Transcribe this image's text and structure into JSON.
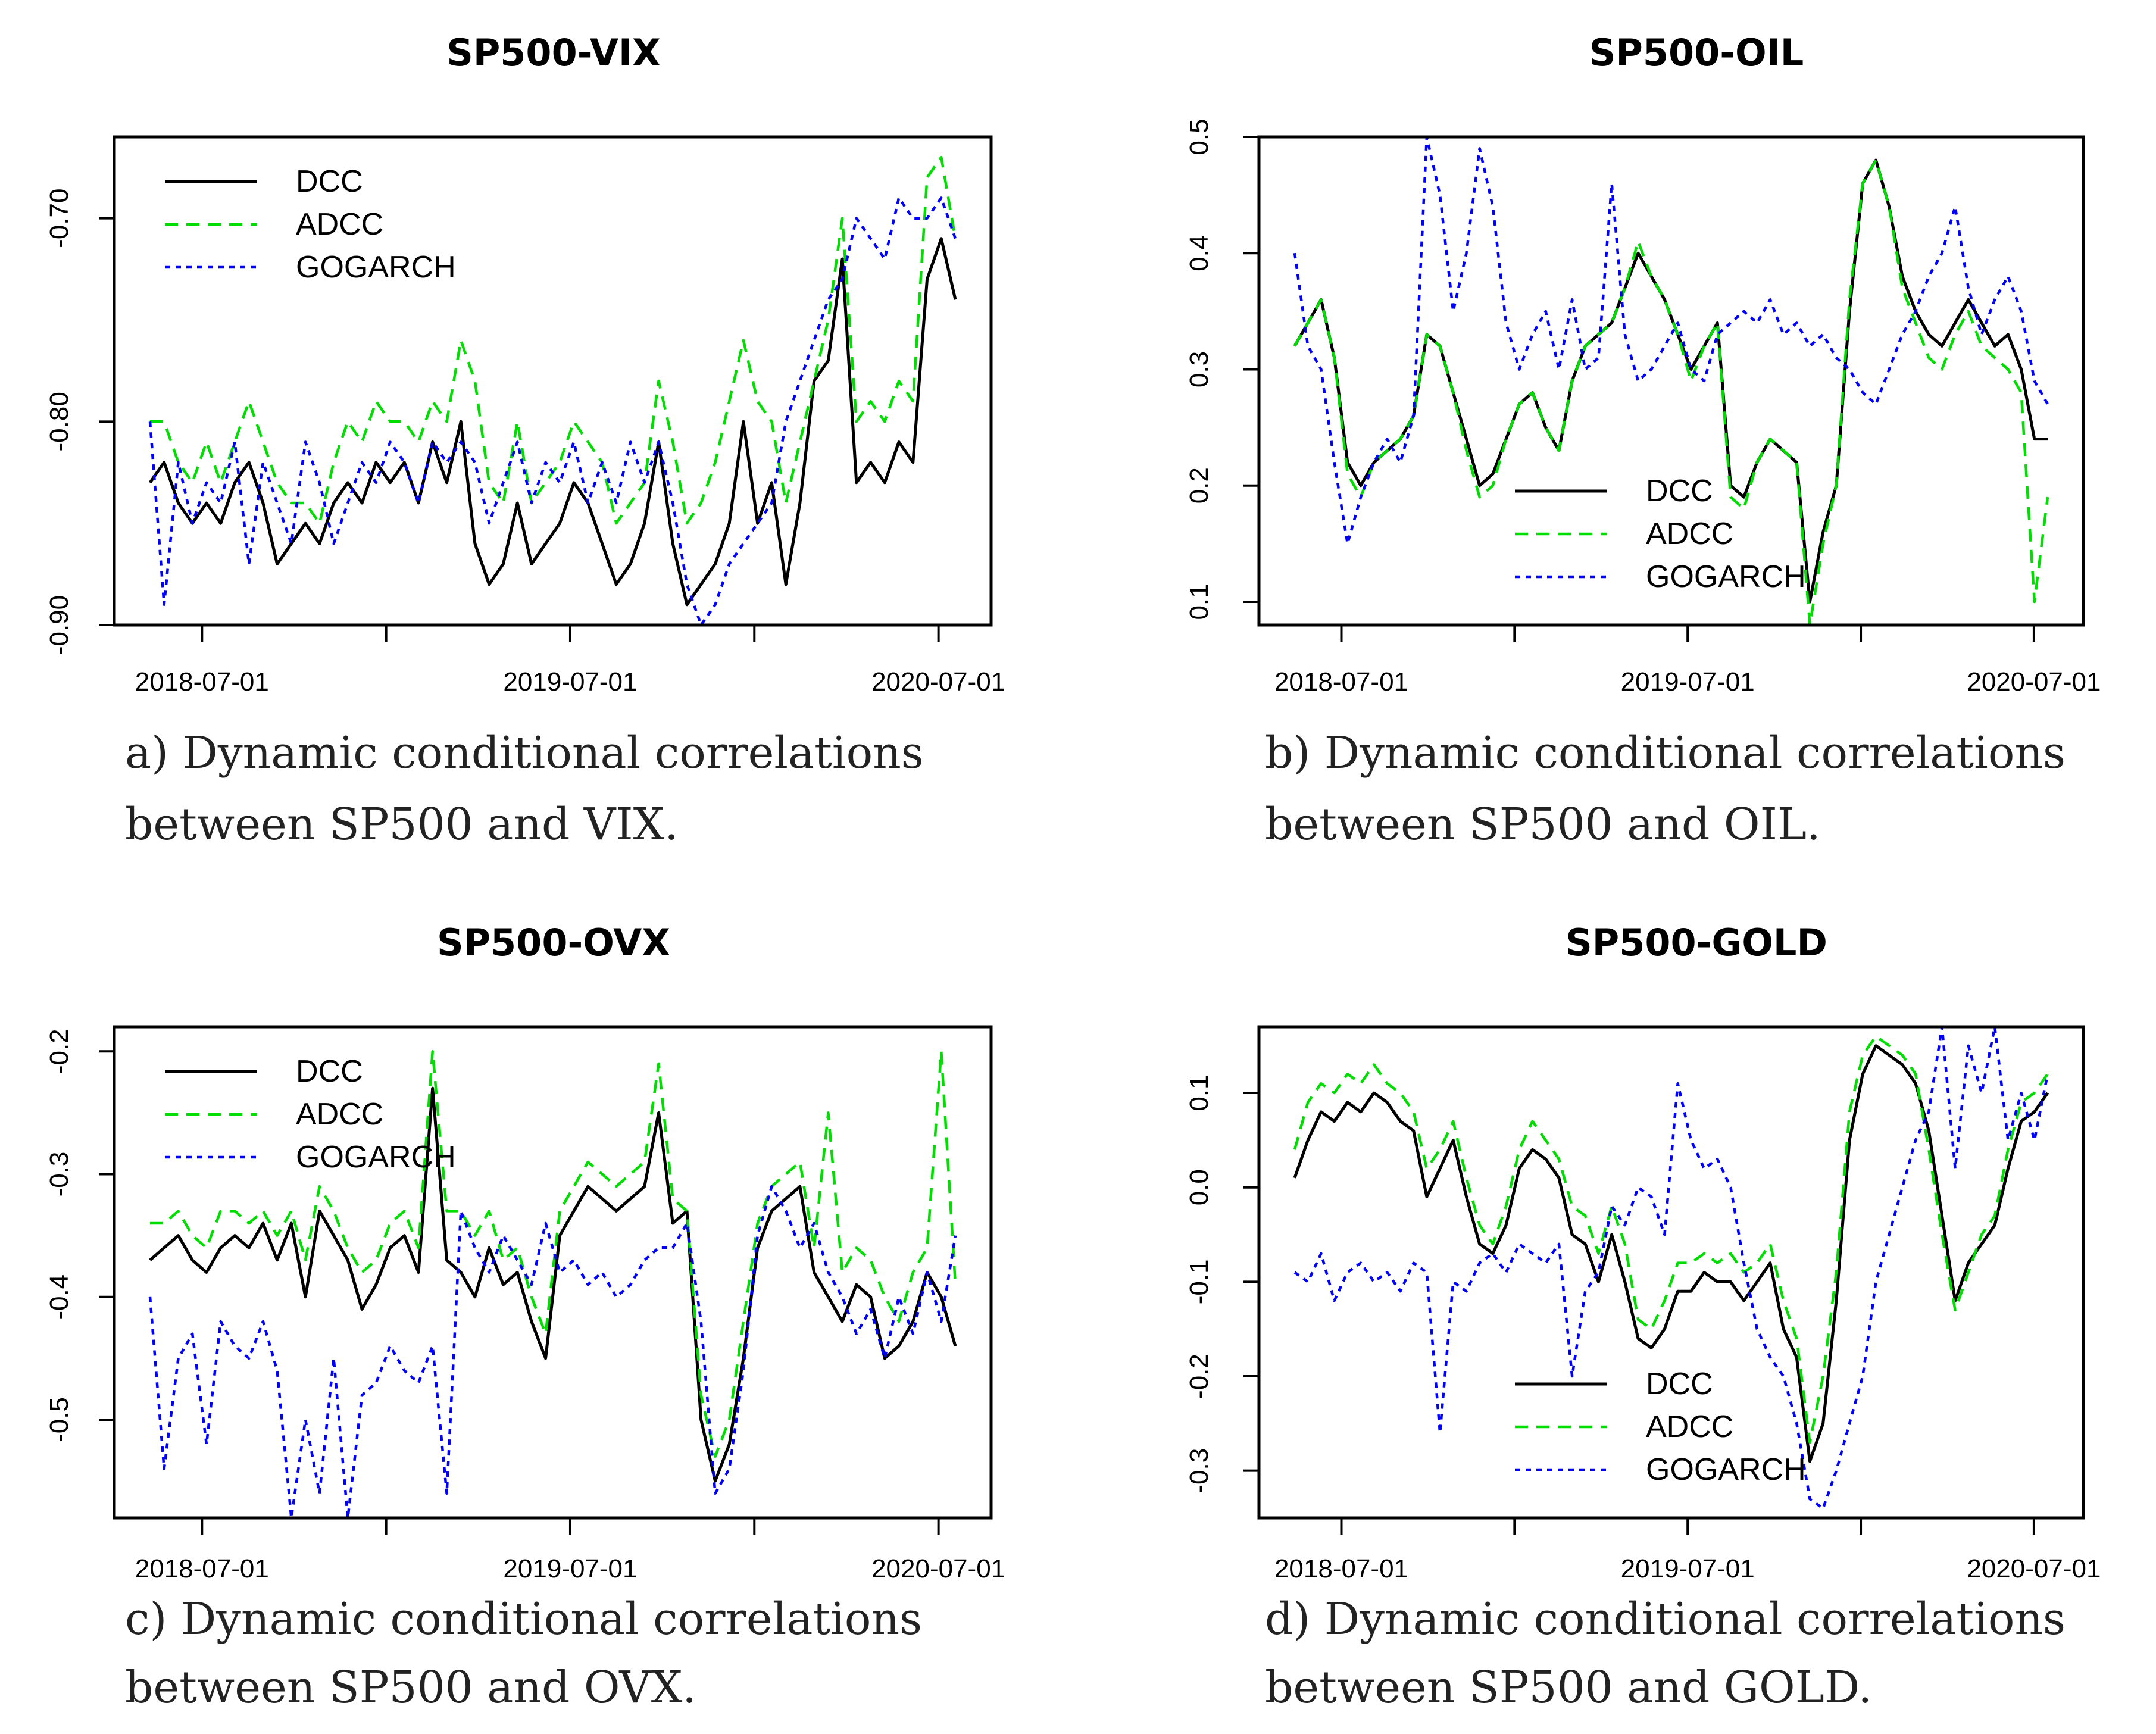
{
  "chart_data": [
    {
      "type": "line",
      "title": "SP500-VIX",
      "caption_lines": [
        "a) Dynamic conditional correlations",
        "between SP500 and VIX."
      ],
      "x_ticks": [
        "2018-07-01",
        "2019-07-01",
        "2020-07-01"
      ],
      "y_ticks": [
        "-0.70",
        "-0.80",
        "-0.90"
      ],
      "ylim": [
        -0.9,
        -0.66
      ],
      "legend": [
        "DCC",
        "ADCC",
        "GOGARCH"
      ],
      "legend_position": "top-left",
      "colors": {
        "DCC": "#000000",
        "ADCC": "#00dd00",
        "GOGARCH": "#0000ff"
      },
      "series": [
        {
          "name": "DCC",
          "values": [
            -0.83,
            -0.82,
            -0.84,
            -0.85,
            -0.84,
            -0.85,
            -0.83,
            -0.82,
            -0.84,
            -0.87,
            -0.86,
            -0.85,
            -0.86,
            -0.84,
            -0.83,
            -0.84,
            -0.82,
            -0.83,
            -0.82,
            -0.84,
            -0.81,
            -0.83,
            -0.8,
            -0.86,
            -0.88,
            -0.87,
            -0.84,
            -0.87,
            -0.86,
            -0.85,
            -0.83,
            -0.84,
            -0.86,
            -0.88,
            -0.87,
            -0.85,
            -0.81,
            -0.86,
            -0.89,
            -0.88,
            -0.87,
            -0.85,
            -0.8,
            -0.85,
            -0.83,
            -0.88,
            -0.84,
            -0.78,
            -0.77,
            -0.72,
            -0.83,
            -0.82,
            -0.83,
            -0.81,
            -0.82,
            -0.73,
            -0.71,
            -0.74
          ]
        },
        {
          "name": "ADCC",
          "values": [
            -0.8,
            -0.8,
            -0.82,
            -0.83,
            -0.81,
            -0.83,
            -0.81,
            -0.79,
            -0.81,
            -0.83,
            -0.84,
            -0.84,
            -0.85,
            -0.82,
            -0.8,
            -0.81,
            -0.79,
            -0.8,
            -0.8,
            -0.81,
            -0.79,
            -0.8,
            -0.76,
            -0.78,
            -0.83,
            -0.84,
            -0.8,
            -0.84,
            -0.83,
            -0.82,
            -0.8,
            -0.81,
            -0.82,
            -0.85,
            -0.84,
            -0.83,
            -0.78,
            -0.81,
            -0.85,
            -0.84,
            -0.82,
            -0.79,
            -0.76,
            -0.79,
            -0.8,
            -0.84,
            -0.81,
            -0.78,
            -0.75,
            -0.7,
            -0.8,
            -0.79,
            -0.8,
            -0.78,
            -0.79,
            -0.68,
            -0.67,
            -0.71
          ]
        },
        {
          "name": "GOGARCH",
          "values": [
            -0.8,
            -0.89,
            -0.82,
            -0.85,
            -0.83,
            -0.84,
            -0.81,
            -0.87,
            -0.82,
            -0.84,
            -0.86,
            -0.81,
            -0.83,
            -0.86,
            -0.84,
            -0.82,
            -0.83,
            -0.81,
            -0.82,
            -0.84,
            -0.81,
            -0.82,
            -0.81,
            -0.82,
            -0.85,
            -0.83,
            -0.81,
            -0.84,
            -0.82,
            -0.83,
            -0.81,
            -0.84,
            -0.82,
            -0.84,
            -0.81,
            -0.83,
            -0.81,
            -0.84,
            -0.88,
            -0.9,
            -0.89,
            -0.87,
            -0.86,
            -0.85,
            -0.84,
            -0.8,
            -0.78,
            -0.76,
            -0.74,
            -0.73,
            -0.7,
            -0.71,
            -0.72,
            -0.69,
            -0.7,
            -0.7,
            -0.69,
            -0.71
          ]
        }
      ]
    },
    {
      "type": "line",
      "title": "SP500-OIL",
      "caption_lines": [
        "b) Dynamic conditional correlations",
        "between SP500 and OIL."
      ],
      "x_ticks": [
        "2018-07-01",
        "2019-07-01",
        "2020-07-01"
      ],
      "y_ticks": [
        "0.5",
        "0.4",
        "0.3",
        "0.2",
        "0.1"
      ],
      "ylim": [
        0.08,
        0.5
      ],
      "legend": [
        "DCC",
        "ADCC",
        "GOGARCH"
      ],
      "legend_position": "bottom-center",
      "colors": {
        "DCC": "#000000",
        "ADCC": "#00dd00",
        "GOGARCH": "#0000ff"
      },
      "series": [
        {
          "name": "DCC",
          "values": [
            0.32,
            0.34,
            0.36,
            0.31,
            0.22,
            0.2,
            0.22,
            0.23,
            0.24,
            0.26,
            0.33,
            0.32,
            0.28,
            0.24,
            0.2,
            0.21,
            0.24,
            0.27,
            0.28,
            0.25,
            0.23,
            0.29,
            0.32,
            0.33,
            0.34,
            0.37,
            0.4,
            0.38,
            0.36,
            0.33,
            0.3,
            0.32,
            0.34,
            0.2,
            0.19,
            0.22,
            0.24,
            0.23,
            0.22,
            0.1,
            0.16,
            0.2,
            0.35,
            0.46,
            0.48,
            0.44,
            0.38,
            0.35,
            0.33,
            0.32,
            0.34,
            0.36,
            0.34,
            0.32,
            0.33,
            0.3,
            0.24,
            0.24
          ]
        },
        {
          "name": "ADCC",
          "values": [
            0.32,
            0.34,
            0.36,
            0.31,
            0.21,
            0.19,
            0.22,
            0.23,
            0.24,
            0.26,
            0.33,
            0.32,
            0.28,
            0.23,
            0.19,
            0.2,
            0.24,
            0.27,
            0.28,
            0.25,
            0.23,
            0.29,
            0.32,
            0.33,
            0.34,
            0.37,
            0.41,
            0.38,
            0.36,
            0.33,
            0.29,
            0.32,
            0.34,
            0.19,
            0.18,
            0.22,
            0.24,
            0.23,
            0.22,
            0.08,
            0.15,
            0.2,
            0.36,
            0.46,
            0.48,
            0.44,
            0.37,
            0.34,
            0.31,
            0.3,
            0.33,
            0.35,
            0.32,
            0.31,
            0.3,
            0.28,
            0.1,
            0.19
          ]
        },
        {
          "name": "GOGARCH",
          "values": [
            0.4,
            0.32,
            0.3,
            0.22,
            0.15,
            0.19,
            0.22,
            0.24,
            0.22,
            0.26,
            0.5,
            0.45,
            0.35,
            0.4,
            0.49,
            0.44,
            0.34,
            0.3,
            0.33,
            0.35,
            0.3,
            0.36,
            0.3,
            0.31,
            0.46,
            0.33,
            0.29,
            0.3,
            0.32,
            0.34,
            0.3,
            0.29,
            0.33,
            0.34,
            0.35,
            0.34,
            0.36,
            0.33,
            0.34,
            0.32,
            0.33,
            0.31,
            0.3,
            0.28,
            0.27,
            0.3,
            0.33,
            0.35,
            0.38,
            0.4,
            0.44,
            0.37,
            0.33,
            0.36,
            0.38,
            0.35,
            0.29,
            0.27
          ]
        }
      ]
    },
    {
      "type": "line",
      "title": "SP500-OVX",
      "caption_lines": [
        "c) Dynamic conditional correlations",
        "between SP500 and OVX."
      ],
      "x_ticks": [
        "2018-07-01",
        "2019-07-01",
        "2020-07-01"
      ],
      "y_ticks": [
        "-0.2",
        "-0.3",
        "-0.4",
        "-0.5"
      ],
      "ylim": [
        -0.58,
        -0.18
      ],
      "legend": [
        "DCC",
        "ADCC",
        "GOGARCH"
      ],
      "legend_position": "top-left",
      "colors": {
        "DCC": "#000000",
        "ADCC": "#00dd00",
        "GOGARCH": "#0000ff"
      },
      "series": [
        {
          "name": "DCC",
          "values": [
            -0.37,
            -0.36,
            -0.35,
            -0.37,
            -0.38,
            -0.36,
            -0.35,
            -0.36,
            -0.34,
            -0.37,
            -0.34,
            -0.4,
            -0.33,
            -0.35,
            -0.37,
            -0.41,
            -0.39,
            -0.36,
            -0.35,
            -0.38,
            -0.23,
            -0.37,
            -0.38,
            -0.4,
            -0.36,
            -0.39,
            -0.38,
            -0.42,
            -0.45,
            -0.35,
            -0.33,
            -0.31,
            -0.32,
            -0.33,
            -0.32,
            -0.31,
            -0.25,
            -0.34,
            -0.33,
            -0.5,
            -0.55,
            -0.52,
            -0.45,
            -0.36,
            -0.33,
            -0.32,
            -0.31,
            -0.38,
            -0.4,
            -0.42,
            -0.39,
            -0.4,
            -0.45,
            -0.44,
            -0.42,
            -0.38,
            -0.4,
            -0.44
          ]
        },
        {
          "name": "ADCC",
          "values": [
            -0.34,
            -0.34,
            -0.33,
            -0.35,
            -0.36,
            -0.33,
            -0.33,
            -0.34,
            -0.33,
            -0.35,
            -0.33,
            -0.37,
            -0.31,
            -0.33,
            -0.36,
            -0.38,
            -0.37,
            -0.34,
            -0.33,
            -0.36,
            -0.2,
            -0.33,
            -0.33,
            -0.35,
            -0.33,
            -0.37,
            -0.36,
            -0.4,
            -0.43,
            -0.33,
            -0.31,
            -0.29,
            -0.3,
            -0.31,
            -0.3,
            -0.29,
            -0.21,
            -0.32,
            -0.33,
            -0.48,
            -0.53,
            -0.5,
            -0.42,
            -0.34,
            -0.31,
            -0.3,
            -0.29,
            -0.36,
            -0.25,
            -0.38,
            -0.36,
            -0.37,
            -0.4,
            -0.42,
            -0.38,
            -0.36,
            -0.2,
            -0.39
          ]
        },
        {
          "name": "GOGARCH",
          "values": [
            -0.4,
            -0.54,
            -0.45,
            -0.43,
            -0.52,
            -0.42,
            -0.44,
            -0.45,
            -0.42,
            -0.46,
            -0.58,
            -0.5,
            -0.56,
            -0.45,
            -0.58,
            -0.48,
            -0.47,
            -0.44,
            -0.46,
            -0.47,
            -0.44,
            -0.56,
            -0.33,
            -0.36,
            -0.38,
            -0.35,
            -0.37,
            -0.39,
            -0.34,
            -0.38,
            -0.37,
            -0.39,
            -0.38,
            -0.4,
            -0.39,
            -0.37,
            -0.36,
            -0.36,
            -0.34,
            -0.42,
            -0.56,
            -0.54,
            -0.46,
            -0.35,
            -0.31,
            -0.33,
            -0.36,
            -0.34,
            -0.38,
            -0.4,
            -0.43,
            -0.41,
            -0.45,
            -0.4,
            -0.43,
            -0.38,
            -0.42,
            -0.35
          ]
        }
      ]
    },
    {
      "type": "line",
      "title": "SP500-GOLD",
      "caption_lines": [
        "d) Dynamic conditional correlations",
        "between SP500 and GOLD."
      ],
      "x_ticks": [
        "2018-07-01",
        "2019-07-01",
        "2020-07-01"
      ],
      "y_ticks": [
        "0.1",
        "0.0",
        "-0.1",
        "-0.2",
        "-0.3"
      ],
      "ylim": [
        -0.35,
        0.17
      ],
      "legend": [
        "DCC",
        "ADCC",
        "GOGARCH"
      ],
      "legend_position": "bottom-center",
      "colors": {
        "DCC": "#000000",
        "ADCC": "#00dd00",
        "GOGARCH": "#0000ff"
      },
      "series": [
        {
          "name": "DCC",
          "values": [
            0.01,
            0.05,
            0.08,
            0.07,
            0.09,
            0.08,
            0.1,
            0.09,
            0.07,
            0.06,
            -0.01,
            0.02,
            0.05,
            -0.01,
            -0.06,
            -0.07,
            -0.04,
            0.02,
            0.04,
            0.03,
            0.01,
            -0.05,
            -0.06,
            -0.1,
            -0.05,
            -0.1,
            -0.16,
            -0.17,
            -0.15,
            -0.11,
            -0.11,
            -0.09,
            -0.1,
            -0.1,
            -0.12,
            -0.1,
            -0.08,
            -0.15,
            -0.18,
            -0.29,
            -0.25,
            -0.12,
            0.05,
            0.12,
            0.15,
            0.14,
            0.13,
            0.11,
            0.06,
            -0.03,
            -0.12,
            -0.08,
            -0.06,
            -0.04,
            0.02,
            0.07,
            0.08,
            0.1
          ]
        },
        {
          "name": "ADCC",
          "values": [
            0.04,
            0.09,
            0.11,
            0.1,
            0.12,
            0.11,
            0.13,
            0.11,
            0.1,
            0.08,
            0.02,
            0.04,
            0.07,
            0.01,
            -0.04,
            -0.06,
            -0.02,
            0.04,
            0.07,
            0.05,
            0.03,
            -0.02,
            -0.03,
            -0.07,
            -0.02,
            -0.06,
            -0.14,
            -0.15,
            -0.12,
            -0.08,
            -0.08,
            -0.07,
            -0.08,
            -0.07,
            -0.09,
            -0.08,
            -0.06,
            -0.12,
            -0.16,
            -0.27,
            -0.2,
            -0.09,
            0.08,
            0.14,
            0.16,
            0.15,
            0.14,
            0.12,
            0.04,
            -0.05,
            -0.13,
            -0.09,
            -0.05,
            -0.03,
            0.04,
            0.09,
            0.1,
            0.12
          ]
        },
        {
          "name": "GOGARCH",
          "values": [
            -0.09,
            -0.1,
            -0.07,
            -0.12,
            -0.09,
            -0.08,
            -0.1,
            -0.09,
            -0.11,
            -0.08,
            -0.09,
            -0.26,
            -0.1,
            -0.11,
            -0.08,
            -0.07,
            -0.09,
            -0.06,
            -0.07,
            -0.08,
            -0.06,
            -0.2,
            -0.11,
            -0.09,
            -0.02,
            -0.04,
            0.0,
            -0.01,
            -0.05,
            0.11,
            0.05,
            0.02,
            0.03,
            0.0,
            -0.08,
            -0.15,
            -0.18,
            -0.2,
            -0.25,
            -0.33,
            -0.34,
            -0.3,
            -0.25,
            -0.2,
            -0.1,
            -0.05,
            0.0,
            0.05,
            0.08,
            0.17,
            0.02,
            0.15,
            0.1,
            0.17,
            0.05,
            0.1,
            0.05,
            0.12
          ]
        }
      ]
    }
  ]
}
